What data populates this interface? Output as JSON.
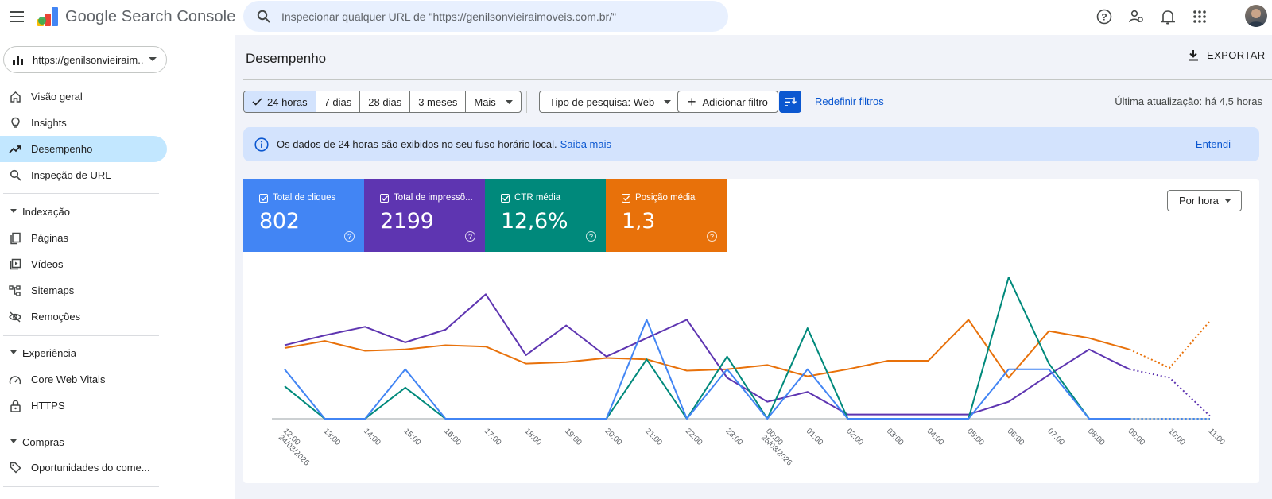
{
  "app": {
    "name": "Google Search Console"
  },
  "search": {
    "placeholder": "Inspecionar qualquer URL de \"https://genilsonvieiraimoveis.com.br/\""
  },
  "topbar_icons": [
    "help-icon",
    "manage-users-icon",
    "notifications-icon",
    "apps-icon"
  ],
  "property": {
    "label": "https://genilsonvieiraim..."
  },
  "sidebar": {
    "items": [
      {
        "label": "Visão geral",
        "icon": "home-icon"
      },
      {
        "label": "Insights",
        "icon": "lightbulb-icon"
      },
      {
        "label": "Desempenho",
        "icon": "trending-icon",
        "active": true
      },
      {
        "label": "Inspeção de URL",
        "icon": "search-icon"
      }
    ],
    "sections": [
      {
        "title": "Indexação",
        "items": [
          {
            "label": "Páginas",
            "icon": "pages-icon"
          },
          {
            "label": "Vídeos",
            "icon": "video-icon"
          },
          {
            "label": "Sitemaps",
            "icon": "sitemap-icon"
          },
          {
            "label": "Remoções",
            "icon": "eye-off-icon"
          }
        ]
      },
      {
        "title": "Experiência",
        "items": [
          {
            "label": "Core Web Vitals",
            "icon": "speed-icon"
          },
          {
            "label": "HTTPS",
            "icon": "lock-icon"
          }
        ]
      },
      {
        "title": "Compras",
        "items": [
          {
            "label": "Oportunidades do come...",
            "icon": "tag-icon"
          }
        ]
      }
    ]
  },
  "page": {
    "title": "Desempenho",
    "export_label": "EXPORTAR"
  },
  "date_ranges": [
    "24 horas",
    "7 dias",
    "28 dias",
    "3 meses",
    "Mais"
  ],
  "filters": {
    "search_type": "Tipo de pesquisa: Web",
    "add_filter": "Adicionar filtro",
    "reset": "Redefinir filtros",
    "last_update": "Última atualização: há 4,5 horas"
  },
  "banner": {
    "text": "Os dados de 24 horas são exibidos no seu fuso horário local.",
    "link": "Saiba mais",
    "dismiss": "Entendi"
  },
  "metrics": [
    {
      "label": "Total de cliques",
      "value": "802",
      "color": "#4285f4"
    },
    {
      "label": "Total de impressõ...",
      "value": "2199",
      "color": "#5e35b1"
    },
    {
      "label": "CTR média",
      "value": "12,6%",
      "color": "#00897b"
    },
    {
      "label": "Posição média",
      "value": "1,3",
      "color": "#e8710a"
    }
  ],
  "granularity": {
    "label": "Por hora"
  },
  "chart_data": {
    "type": "line",
    "x": [
      "12:00",
      "13:00",
      "14:00",
      "15:00",
      "16:00",
      "17:00",
      "18:00",
      "19:00",
      "20:00",
      "21:00",
      "22:00",
      "23:00",
      "00:00",
      "01:00",
      "02:00",
      "03:00",
      "04:00",
      "05:00",
      "06:00",
      "07:00",
      "08:00",
      "09:00",
      "10:00",
      "11:00"
    ],
    "x_sublabels": {
      "0": "24/03/2026",
      "12": "25/03/2026"
    },
    "solid_until_index": 21,
    "ylim": [
      0,
      1
    ],
    "series": [
      {
        "key": "clicks",
        "color": "#4285f4",
        "values": [
          0.35,
          0,
          0,
          0.35,
          0,
          0,
          0,
          0,
          0,
          0.7,
          0,
          0.35,
          0,
          0.35,
          0,
          0,
          0,
          0,
          0.35,
          0.35,
          0,
          0,
          0,
          0
        ]
      },
      {
        "key": "impressions",
        "color": "#5e35b1",
        "values": [
          0.52,
          0.59,
          0.65,
          0.54,
          0.63,
          0.88,
          0.45,
          0.66,
          0.44,
          0.57,
          0.7,
          0.29,
          0.12,
          0.19,
          0.03,
          0.03,
          0.03,
          0.03,
          0.12,
          0.31,
          0.49,
          0.35,
          0.29,
          0.02
        ]
      },
      {
        "key": "ctr",
        "color": "#00897b",
        "values": [
          0.23,
          0,
          0,
          0.22,
          0,
          0,
          0,
          0,
          0,
          0.42,
          0,
          0.44,
          0,
          0.64,
          0,
          0,
          0,
          0,
          1.0,
          0.39,
          0,
          0,
          0,
          0
        ]
      },
      {
        "key": "position",
        "color": "#e8710a",
        "values": [
          0.5,
          0.55,
          0.48,
          0.49,
          0.52,
          0.51,
          0.39,
          0.4,
          0.43,
          0.42,
          0.34,
          0.35,
          0.38,
          0.3,
          0.35,
          0.41,
          0.41,
          0.7,
          0.29,
          0.62,
          0.57,
          0.49,
          0.36,
          0.69
        ]
      }
    ]
  }
}
